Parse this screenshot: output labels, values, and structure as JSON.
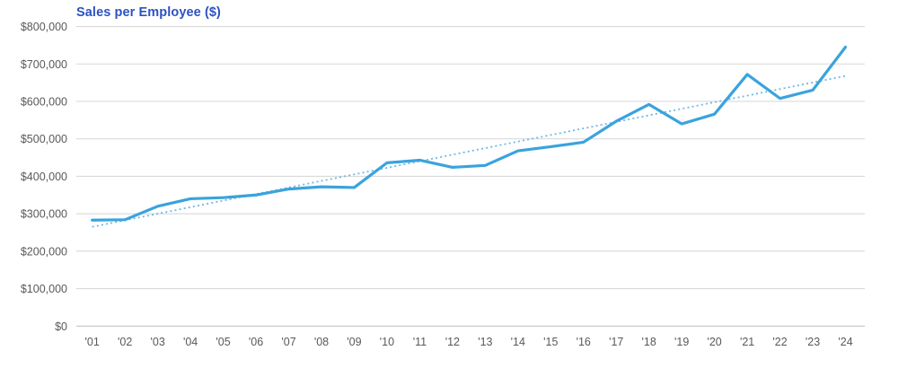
{
  "chart": {
    "title": "Sales per Employee ($)",
    "title_color": "#2b52c2",
    "line_color": "#3aa3dd",
    "trend_color": "#6db8e4",
    "grid_color": "#d9d9d9",
    "axis_color": "#c2c2c2",
    "label_color": "#595959"
  },
  "chart_data": {
    "type": "line",
    "title": "Sales per Employee ($)",
    "categories": [
      "'01",
      "'02",
      "'03",
      "'04",
      "'05",
      "'06",
      "'07",
      "'08",
      "'09",
      "'10",
      "'11",
      "'12",
      "'13",
      "'14",
      "'15",
      "'16",
      "'17",
      "'18",
      "'19",
      "'20",
      "'21",
      "'22",
      "'23",
      "'24"
    ],
    "series": [
      {
        "name": "Sales per Employee",
        "style": "solid",
        "values": [
          283000,
          284000,
          320000,
          340000,
          343000,
          350000,
          366000,
          372000,
          370000,
          436000,
          443000,
          424000,
          429000,
          468000,
          479000,
          491000,
          547000,
          592000,
          540000,
          566000,
          672000,
          608000,
          630000,
          745000
        ]
      }
    ],
    "trendline": {
      "style": "dotted",
      "start": 265000,
      "end": 668000
    },
    "xlabel": "",
    "ylabel": "",
    "ylim": [
      0,
      800000
    ],
    "ytick_step": 100000,
    "ytick_labels": [
      "$0",
      "$100,000",
      "$200,000",
      "$300,000",
      "$400,000",
      "$500,000",
      "$600,000",
      "$700,000",
      "$800,000"
    ],
    "grid": "horizontal",
    "legend": "none"
  }
}
